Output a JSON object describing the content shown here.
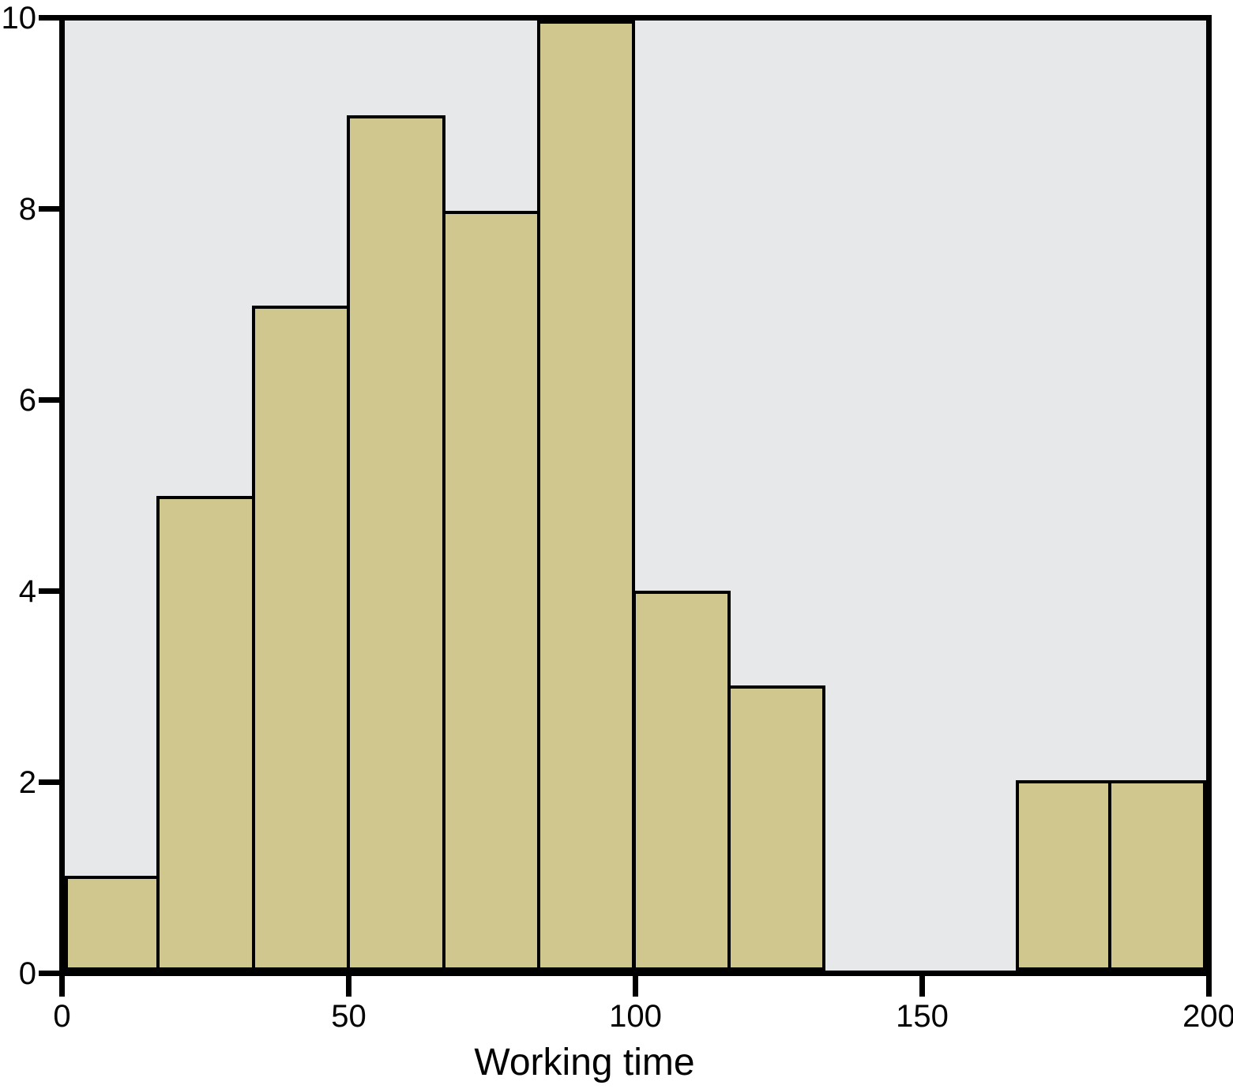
{
  "chart_data": {
    "type": "bar",
    "subtype": "histogram",
    "title": "",
    "xlabel": "Working time",
    "ylabel": "",
    "xlim": [
      0,
      200
    ],
    "ylim": [
      0,
      10
    ],
    "x_ticks": [
      0,
      50,
      100,
      150,
      200
    ],
    "x_tick_labels": [
      "0",
      "50",
      "100",
      "150",
      "200"
    ],
    "y_ticks": [
      0,
      2,
      4,
      6,
      8,
      10
    ],
    "y_tick_labels": [
      "0",
      "2",
      "4",
      "6",
      "8",
      "10"
    ],
    "bin_width": 16.6667,
    "bin_edges": [
      0,
      16.6667,
      33.3333,
      50,
      66.6667,
      83.3333,
      100,
      116.6667,
      133.3333,
      150,
      166.6667,
      183.3333,
      200
    ],
    "counts": [
      1,
      5,
      7,
      9,
      8,
      10,
      4,
      3,
      0,
      0,
      2,
      2
    ],
    "grid": false,
    "legend": null,
    "colors": {
      "bar_fill": "#d0c78e",
      "bar_border": "#000000",
      "plot_background": "#e7e8ea",
      "axis": "#000000",
      "page_background": "#ffffff"
    }
  }
}
